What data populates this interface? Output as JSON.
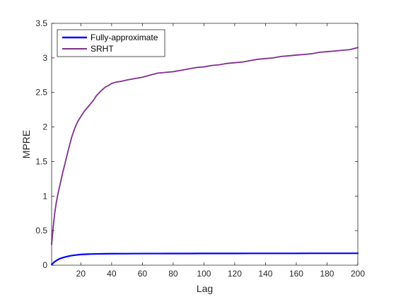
{
  "chart_data": {
    "type": "line",
    "title": "",
    "xlabel": "Lag",
    "ylabel": "MPRE",
    "xlim": [
      1,
      200
    ],
    "ylim": [
      0,
      3.5
    ],
    "xticks": [
      20,
      40,
      60,
      80,
      100,
      120,
      140,
      160,
      180,
      200
    ],
    "yticks": [
      0,
      0.5,
      1,
      1.5,
      2,
      2.5,
      3,
      3.5
    ],
    "xtick_labels": [
      "20",
      "40",
      "60",
      "80",
      "100",
      "120",
      "140",
      "160",
      "180",
      "200"
    ],
    "ytick_labels": [
      "0",
      "0.5",
      "1",
      "1.5",
      "2",
      "2.5",
      "3",
      "3.5"
    ],
    "grid": false,
    "legend": {
      "position": "top-left",
      "entries": [
        "Fully-approximate",
        "SRHT"
      ]
    },
    "series": [
      {
        "name": "Fully-approximate",
        "color": "#0000ff",
        "x": [
          1,
          2,
          3,
          5,
          7,
          10,
          13,
          16,
          20,
          25,
          30,
          35,
          40,
          50,
          60,
          70,
          80,
          90,
          100,
          110,
          120,
          130,
          140,
          150,
          160,
          170,
          180,
          190,
          200
        ],
        "y": [
          0.01,
          0.03,
          0.05,
          0.08,
          0.1,
          0.12,
          0.135,
          0.145,
          0.155,
          0.16,
          0.163,
          0.165,
          0.166,
          0.167,
          0.168,
          0.168,
          0.169,
          0.169,
          0.17,
          0.17,
          0.17,
          0.171,
          0.171,
          0.171,
          0.171,
          0.172,
          0.172,
          0.172,
          0.172
        ]
      },
      {
        "name": "SRHT",
        "color": "#7e2f8e",
        "x": [
          1,
          2,
          3,
          4,
          5,
          6,
          8,
          10,
          12,
          14,
          16,
          18,
          20,
          22,
          25,
          28,
          30,
          33,
          36,
          38,
          40,
          43,
          46,
          50,
          55,
          60,
          65,
          70,
          75,
          80,
          85,
          90,
          95,
          100,
          105,
          110,
          115,
          120,
          125,
          130,
          135,
          140,
          145,
          150,
          155,
          160,
          165,
          170,
          175,
          180,
          185,
          190,
          195,
          200
        ],
        "y": [
          0.3,
          0.55,
          0.75,
          0.9,
          1.02,
          1.12,
          1.32,
          1.5,
          1.68,
          1.85,
          1.98,
          2.08,
          2.15,
          2.22,
          2.3,
          2.38,
          2.45,
          2.52,
          2.58,
          2.6,
          2.63,
          2.65,
          2.66,
          2.68,
          2.7,
          2.72,
          2.75,
          2.78,
          2.79,
          2.8,
          2.82,
          2.84,
          2.86,
          2.87,
          2.89,
          2.9,
          2.92,
          2.93,
          2.94,
          2.96,
          2.98,
          2.99,
          3.0,
          3.02,
          3.03,
          3.04,
          3.05,
          3.06,
          3.08,
          3.09,
          3.1,
          3.11,
          3.12,
          3.15
        ]
      }
    ]
  }
}
